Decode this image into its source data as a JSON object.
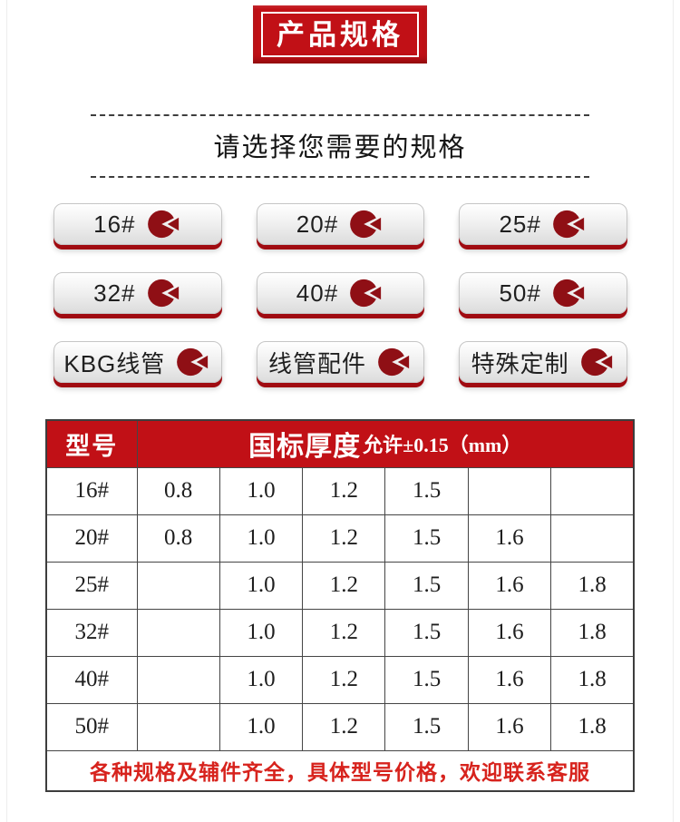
{
  "banner": {
    "label": "产品规格"
  },
  "section_header": {
    "title": "请选择您需要的规格"
  },
  "spec_buttons": {
    "icon": "pie-wedge-icon",
    "items": [
      {
        "label": "16#"
      },
      {
        "label": "20#"
      },
      {
        "label": "25#"
      },
      {
        "label": "32#"
      },
      {
        "label": "40#"
      },
      {
        "label": "50#"
      },
      {
        "label": "KBG线管"
      },
      {
        "label": "线管配件"
      },
      {
        "label": "特殊定制"
      }
    ]
  },
  "table": {
    "header": {
      "model_col": "型号",
      "thickness_title": "国标厚度",
      "thickness_tolerance": "允许±0.15（mm）"
    },
    "rows": [
      {
        "model": "16#",
        "values": [
          "0.8",
          "1.0",
          "1.2",
          "1.5",
          "",
          ""
        ]
      },
      {
        "model": "20#",
        "values": [
          "0.8",
          "1.0",
          "1.2",
          "1.5",
          "1.6",
          ""
        ]
      },
      {
        "model": "25#",
        "values": [
          "",
          "1.0",
          "1.2",
          "1.5",
          "1.6",
          "1.8"
        ]
      },
      {
        "model": "32#",
        "values": [
          "",
          "1.0",
          "1.2",
          "1.5",
          "1.6",
          "1.8"
        ]
      },
      {
        "model": "40#",
        "values": [
          "",
          "1.0",
          "1.2",
          "1.5",
          "1.6",
          "1.8"
        ]
      },
      {
        "model": "50#",
        "values": [
          "",
          "1.0",
          "1.2",
          "1.5",
          "1.6",
          "1.8"
        ]
      }
    ],
    "footer_note": "各种规格及辅件齐全，具体型号价格，欢迎联系客服"
  },
  "colors": {
    "brand_red": "#c11016",
    "dark_red": "#8f0f15",
    "shadow_red": "#a00b11",
    "footer_red": "#d7231d"
  }
}
